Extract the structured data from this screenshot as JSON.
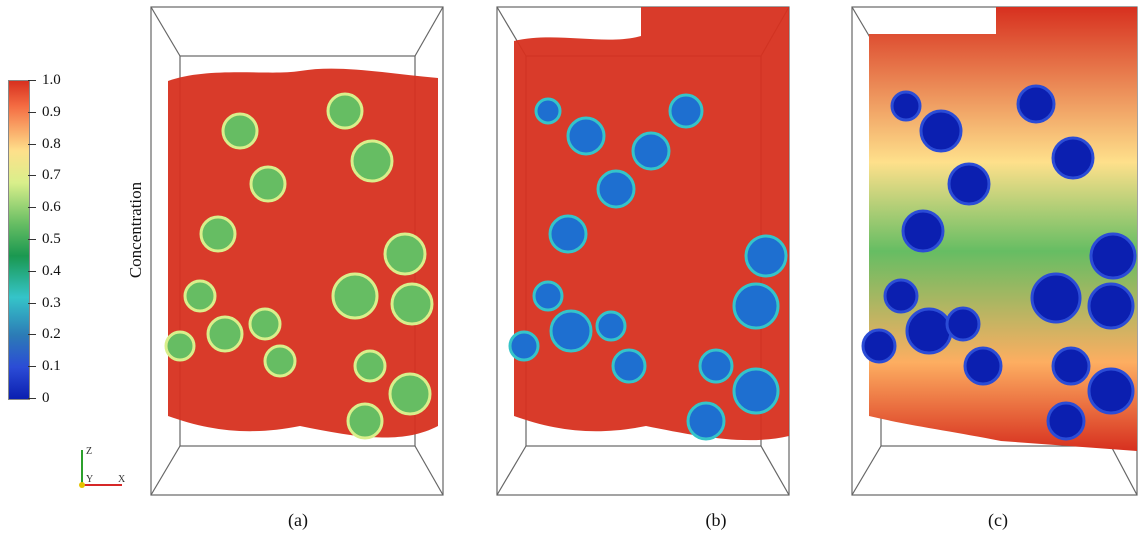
{
  "colorbar": {
    "title": "Concentration",
    "ticks": [
      "1.0",
      "0.9",
      "0.8",
      "0.7",
      "0.6",
      "0.5",
      "0.4",
      "0.3",
      "0.2",
      "0.1",
      "0"
    ]
  },
  "axes_triad": {
    "z": "Z",
    "y": "Y",
    "x": "X"
  },
  "captions": {
    "a": "(a)",
    "b": "(b)",
    "c": "(c)"
  },
  "colors": {
    "high": "#d7301f",
    "mid": "#66bd63",
    "low": "#0b1fb0"
  }
}
